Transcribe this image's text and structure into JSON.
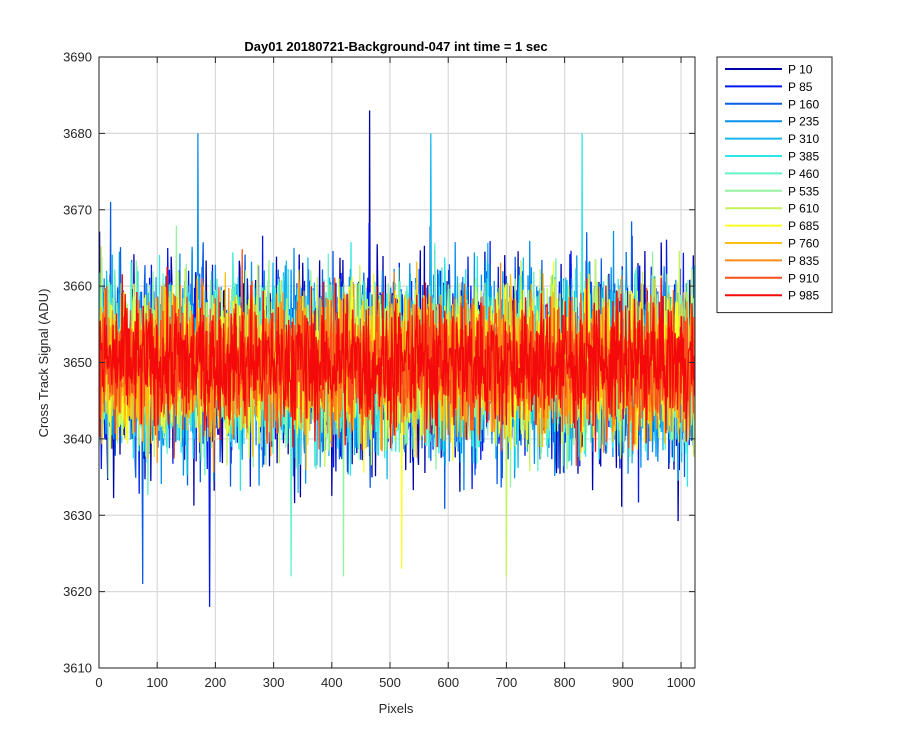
{
  "chart_data": {
    "type": "line",
    "title": "Day01 20180721-Background-047 int time = 1 sec",
    "xlabel": "Pixels",
    "ylabel": "Cross Track Signal (ADU)",
    "xlim": [
      0,
      1024
    ],
    "ylim": [
      3610,
      3690
    ],
    "xticks": [
      0,
      100,
      200,
      300,
      400,
      500,
      600,
      700,
      800,
      900,
      1000
    ],
    "yticks": [
      3610,
      3620,
      3630,
      3640,
      3650,
      3660,
      3670,
      3680,
      3690
    ],
    "grid": true,
    "legend_position": "outside-top-right",
    "noise_mean": 3650,
    "noise_typical_range": [
      3630,
      3672
    ],
    "extremes": [
      {
        "x": 465,
        "y": 3683
      },
      {
        "x": 190,
        "y": 3618
      },
      {
        "x": 75,
        "y": 3621
      },
      {
        "x": 170,
        "y": 3680
      },
      {
        "x": 570,
        "y": 3680
      },
      {
        "x": 830,
        "y": 3680
      },
      {
        "x": 330,
        "y": 3622
      },
      {
        "x": 420,
        "y": 3622
      },
      {
        "x": 700,
        "y": 3622
      },
      {
        "x": 520,
        "y": 3623
      }
    ],
    "series": [
      {
        "name": "P 10",
        "color": "#0000a8"
      },
      {
        "name": "P 85",
        "color": "#0018ec"
      },
      {
        "name": "P 160",
        "color": "#0a5ee6"
      },
      {
        "name": "P 235",
        "color": "#0890ec"
      },
      {
        "name": "P 310",
        "color": "#16b8ee"
      },
      {
        "name": "P 385",
        "color": "#2ee6e6"
      },
      {
        "name": "P 460",
        "color": "#62f2c8"
      },
      {
        "name": "P 535",
        "color": "#96f2a0"
      },
      {
        "name": "P 610",
        "color": "#c6f25a"
      },
      {
        "name": "P 685",
        "color": "#ffff24"
      },
      {
        "name": "P 760",
        "color": "#fcbe10"
      },
      {
        "name": "P 835",
        "color": "#fa8a1a"
      },
      {
        "name": "P 910",
        "color": "#f8501c"
      },
      {
        "name": "P 985",
        "color": "#f40a0a"
      }
    ]
  }
}
